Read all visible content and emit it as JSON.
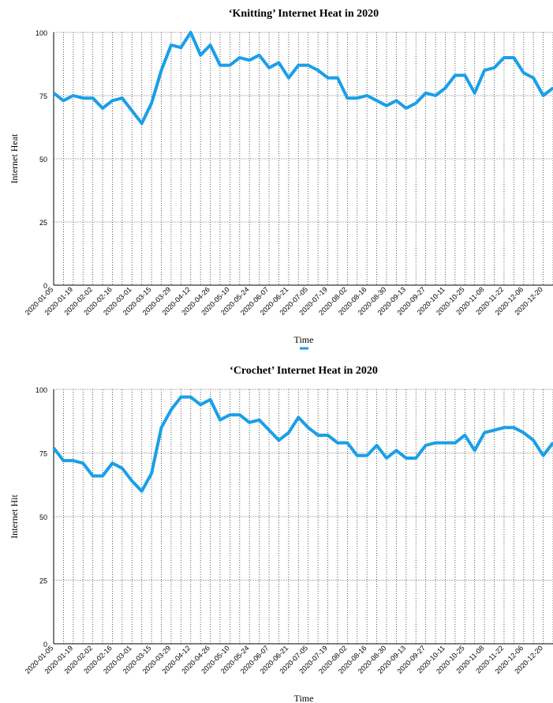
{
  "chart_data": [
    {
      "type": "line",
      "title": "‘Knitting’ Internet Heat in 2020",
      "x_label": "Time",
      "y_label": "Internet Heat",
      "categories": [
        "2020-01-05",
        null,
        "2020-01-19",
        null,
        "2020-02-02",
        null,
        "2020-02-16",
        null,
        "2020-03-01",
        null,
        "2020-03-15",
        null,
        "2020-03-29",
        null,
        "2020-04-12",
        null,
        "2020-04-26",
        null,
        "2020-05-10",
        null,
        "2020-05-24",
        null,
        "2020-06-07",
        null,
        "2020-06-21",
        null,
        "2020-07-05",
        null,
        "2020-07-19",
        null,
        "2020-08-02",
        null,
        "2020-08-16",
        null,
        "2020-08-30",
        null,
        "2020-09-13",
        null,
        "2020-09-27",
        null,
        "2020-10-11",
        null,
        "2020-10-25",
        null,
        "2020-11-08",
        null,
        "2020-11-22",
        null,
        "2020-12-06",
        null,
        "2020-12-20",
        null
      ],
      "series": [
        {
          "color": "#1a9fe8",
          "values": [
            76,
            73,
            75,
            74,
            74,
            70,
            73,
            74,
            69,
            64,
            72,
            85,
            95,
            94,
            100,
            91,
            95,
            87,
            87,
            90,
            89,
            91,
            86,
            88,
            82,
            87,
            87,
            85,
            82,
            82,
            74,
            74,
            75,
            73,
            71,
            73,
            70,
            72,
            76,
            75,
            78,
            83,
            83,
            76,
            85,
            86,
            90,
            90,
            84,
            82,
            75,
            78
          ]
        }
      ],
      "ylim": [
        0,
        100
      ],
      "yticks": [
        0,
        25,
        50,
        75,
        100
      ],
      "grid": true,
      "legend": "bottom"
    },
    {
      "type": "line",
      "title": "‘Crochet’ Internet Heat in 2020",
      "x_label": "Time",
      "y_label": "Internet Hit",
      "categories": [
        "2020-01-05",
        null,
        "2020-01-19",
        null,
        "2020-02-02",
        null,
        "2020-02-16",
        null,
        "2020-03-01",
        null,
        "2020-03-15",
        null,
        "2020-03-29",
        null,
        "2020-04-12",
        null,
        "2020-04-26",
        null,
        "2020-05-10",
        null,
        "2020-05-24",
        null,
        "2020-06-07",
        null,
        "2020-06-21",
        null,
        "2020-07-05",
        null,
        "2020-07-19",
        null,
        "2020-08-02",
        null,
        "2020-08-16",
        null,
        "2020-08-30",
        null,
        "2020-09-13",
        null,
        "2020-09-27",
        null,
        "2020-10-11",
        null,
        "2020-10-25",
        null,
        "2020-11-08",
        null,
        "2020-11-22",
        null,
        "2020-12-06",
        null,
        "2020-12-20",
        null
      ],
      "series": [
        {
          "color": "#1a9fe8",
          "values": [
            77,
            72,
            72,
            71,
            66,
            66,
            71,
            69,
            64,
            60,
            67,
            85,
            92,
            97,
            97,
            94,
            96,
            88,
            90,
            90,
            87,
            88,
            84,
            80,
            83,
            89,
            85,
            82,
            82,
            79,
            79,
            74,
            74,
            78,
            73,
            76,
            73,
            73,
            78,
            79,
            79,
            79,
            82,
            76,
            83,
            84,
            85,
            85,
            83,
            80,
            74,
            79
          ]
        }
      ],
      "ylim": [
        0,
        100
      ],
      "yticks": [
        0,
        25,
        50,
        75,
        100
      ],
      "grid": true
    }
  ]
}
